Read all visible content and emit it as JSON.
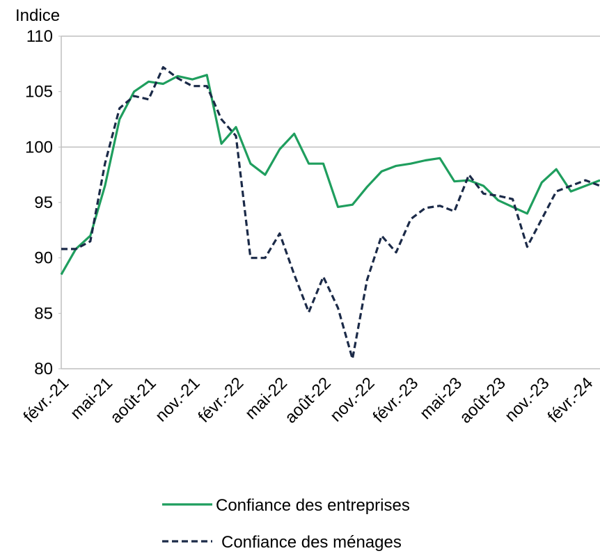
{
  "chart_data": {
    "type": "line",
    "ylabel": "Indice",
    "categories": [
      "févr.-21",
      null,
      null,
      "mai-21",
      null,
      null,
      "août-21",
      null,
      null,
      "nov.-21",
      null,
      null,
      "févr.-22",
      null,
      null,
      "mai-22",
      null,
      null,
      "août-22",
      null,
      null,
      "nov.-22",
      null,
      null,
      "févr.-23",
      null,
      null,
      "mai-23",
      null,
      null,
      "août-23",
      null,
      null,
      "nov.-23",
      null,
      null,
      "févr.-24",
      null
    ],
    "series": [
      {
        "name": "Confiance des entreprises",
        "color": "#1f9e5e",
        "dash": "solid",
        "values": [
          88.5,
          90.8,
          92,
          96.5,
          102.5,
          105,
          105.9,
          105.7,
          106.4,
          106.1,
          106.5,
          100.3,
          101.8,
          98.5,
          97.5,
          99.8,
          101.2,
          98.5,
          98.5,
          94.6,
          94.8,
          96.4,
          97.8,
          98.3,
          98.5,
          98.8,
          99,
          96.9,
          97,
          96.5,
          95.2,
          94.6,
          94,
          96.8,
          98,
          96,
          96.5,
          97
        ]
      },
      {
        "name": "Confiance des ménages",
        "color": "#1b2a48",
        "dash": "dashed",
        "values": [
          90.8,
          90.8,
          91.5,
          98.5,
          103.5,
          104.6,
          104.3,
          107.2,
          106.2,
          105.5,
          105.5,
          102.5,
          101,
          90,
          90,
          92.2,
          88.5,
          85.1,
          88.3,
          85.5,
          80.9,
          88,
          92,
          90.5,
          93.5,
          94.5,
          94.7,
          94.2,
          97.5,
          95.8,
          95.6,
          95.3,
          91,
          93.5,
          96,
          96.5,
          97,
          96.5
        ]
      }
    ],
    "ylim": [
      80,
      110
    ],
    "yticks": [
      80,
      85,
      90,
      95,
      100,
      105,
      110
    ],
    "reference_line": 100,
    "legend": "bottom"
  }
}
